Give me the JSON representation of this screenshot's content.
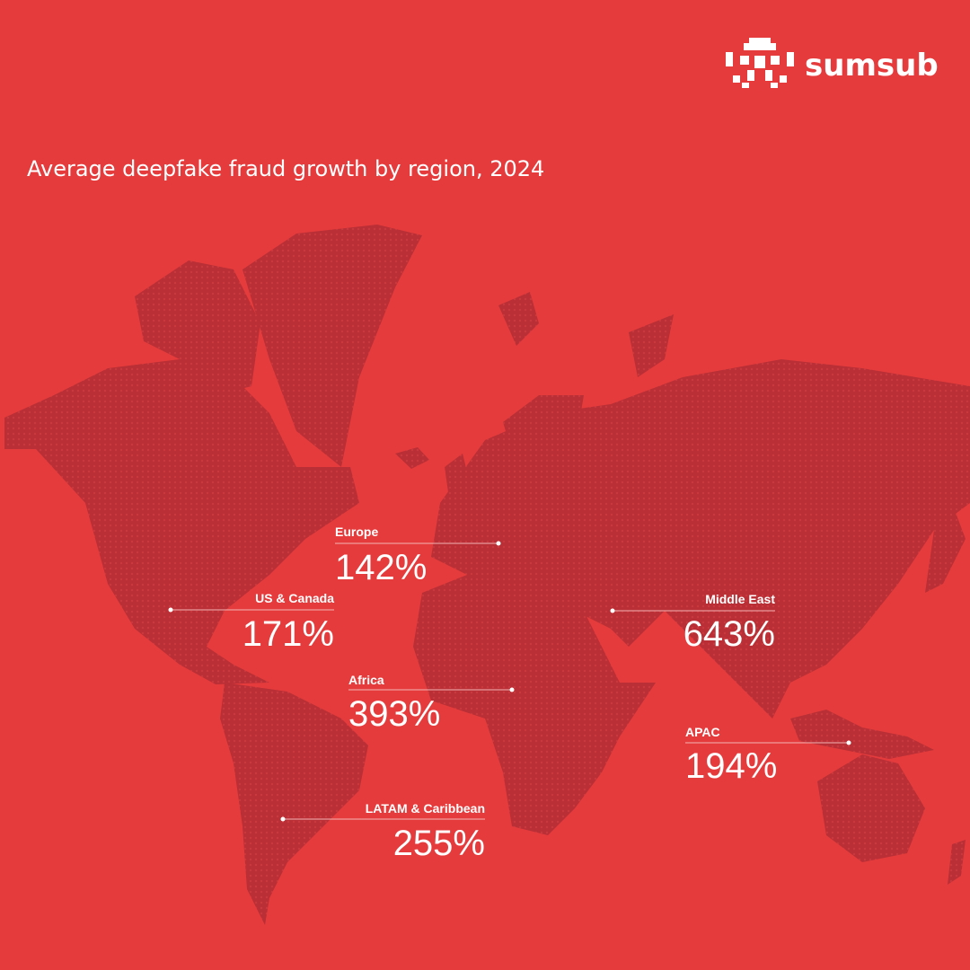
{
  "brand": "sumsub",
  "title": "Average deepfake fraud growth by region, 2024",
  "regions": [
    {
      "name": "Europe",
      "value": "142%"
    },
    {
      "name": "US & Canada",
      "value": "171%"
    },
    {
      "name": "Middle East",
      "value": "643%"
    },
    {
      "name": "Africa",
      "value": "393%"
    },
    {
      "name": "APAC",
      "value": "194%"
    },
    {
      "name": "LATAM & Caribbean",
      "value": "255%"
    }
  ]
}
